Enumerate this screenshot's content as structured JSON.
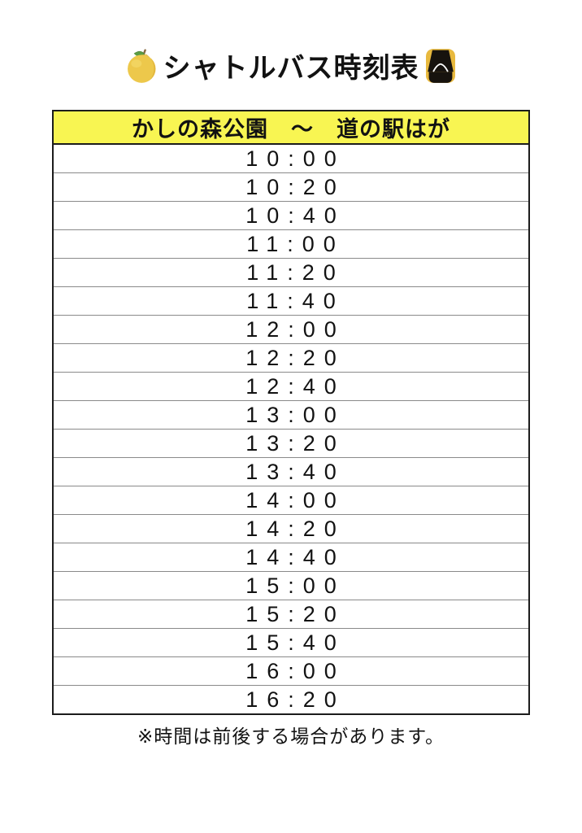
{
  "title": {
    "text": "シャトルバス時刻表",
    "left_icon": "pear-emoji",
    "right_icon": "oncoming-bus-emoji"
  },
  "timetable": {
    "route_header": "かしの森公園　～　道の駅はが",
    "times": [
      "10:00",
      "10:20",
      "10:40",
      "11:00",
      "11:20",
      "11:40",
      "12:00",
      "12:20",
      "12:40",
      "13:00",
      "13:20",
      "13:40",
      "14:00",
      "14:20",
      "14:40",
      "15:00",
      "15:20",
      "15:40",
      "16:00",
      "16:20"
    ]
  },
  "footnote": "※時間は前後する場合があります。",
  "colors": {
    "header_bg": "#F8F552",
    "table_border": "#1C1C1C",
    "row_divider": "#8A8A8A",
    "text": "#121212"
  }
}
